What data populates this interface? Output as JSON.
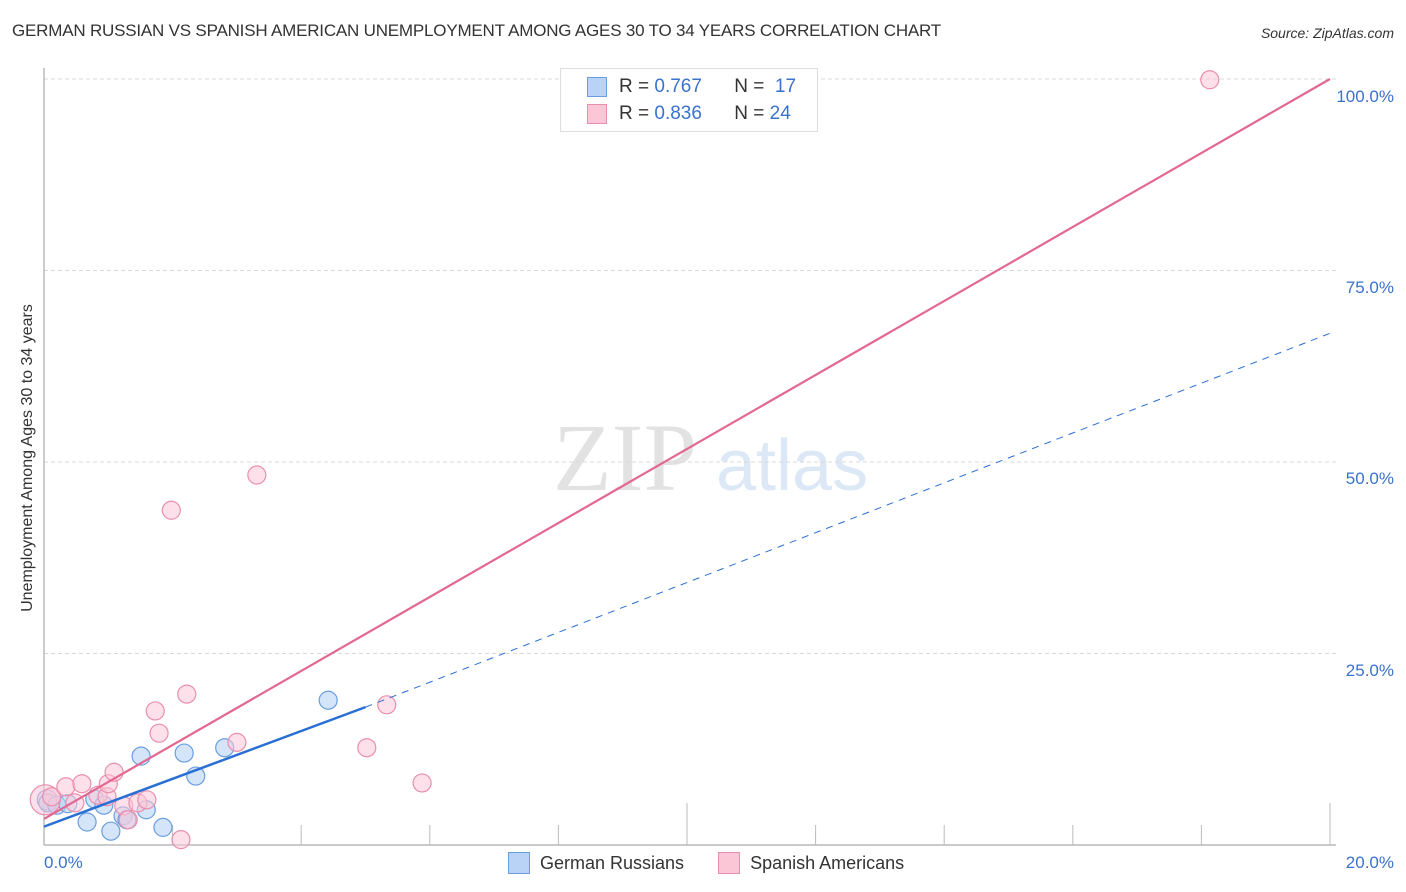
{
  "header": {
    "title": "GERMAN RUSSIAN VS SPANISH AMERICAN UNEMPLOYMENT AMONG AGES 30 TO 34 YEARS CORRELATION CHART",
    "source": "Source: ZipAtlas.com"
  },
  "legend_top": {
    "rows": [
      {
        "r_label": "R =",
        "r_value": "0.767",
        "n_label": "N =",
        "n_value": "17"
      },
      {
        "r_label": "R =",
        "r_value": "0.836",
        "n_label": "N =",
        "n_value": "24"
      }
    ]
  },
  "legend_bottom": {
    "items": [
      {
        "label": "German Russians",
        "color": "#b8d3f5"
      },
      {
        "label": "Spanish Americans",
        "color": "#fbc7d7"
      }
    ]
  },
  "axes": {
    "ylabel": "Unemployment Among Ages 30 to 34 years",
    "x_min_label": "0.0%",
    "x_max_label": "20.0%",
    "y_ticks": [
      "100.0%",
      "75.0%",
      "50.0%",
      "25.0%"
    ]
  },
  "watermark": {
    "zip": "ZIP",
    "atlas": "atlas"
  },
  "colors": {
    "blue_line": "#2a6fd4",
    "pink_line": "#e26791",
    "blue_fill": "#b8d3f5",
    "pink_fill": "#fbc7d7",
    "tick_label": "#3a72cc"
  },
  "chart_data": {
    "type": "scatter",
    "title": "GERMAN RUSSIAN VS SPANISH AMERICAN UNEMPLOYMENT AMONG AGES 30 TO 34 YEARS CORRELATION CHART",
    "xlabel": "",
    "ylabel": "Unemployment Among Ages 30 to 34 years",
    "xlim": [
      0,
      20
    ],
    "ylim": [
      0,
      100
    ],
    "x_ticks": [
      "0.0%",
      "20.0%"
    ],
    "y_ticks": [
      "25.0%",
      "50.0%",
      "75.0%",
      "100.0%"
    ],
    "grid": "horizontal dashed",
    "legend_position": "bottom",
    "series": [
      {
        "name": "German Russians",
        "R": 0.767,
        "N": 17,
        "color": "#6a9ee0",
        "points": [
          [
            0.05,
            5.9
          ],
          [
            0.06,
            5.5
          ],
          [
            0.2,
            5.2
          ],
          [
            0.37,
            5.4
          ],
          [
            0.67,
            3.0
          ],
          [
            0.79,
            6.0
          ],
          [
            0.93,
            5.2
          ],
          [
            1.04,
            1.8
          ],
          [
            1.23,
            3.8
          ],
          [
            1.29,
            3.3
          ],
          [
            1.51,
            11.6
          ],
          [
            1.59,
            4.6
          ],
          [
            1.85,
            2.3
          ],
          [
            2.18,
            12.0
          ],
          [
            2.36,
            9.0
          ],
          [
            2.81,
            12.7
          ],
          [
            4.42,
            18.9
          ]
        ],
        "trend": {
          "x0": 0,
          "y0": 2.4,
          "x1": 5.0,
          "y1": 18.0,
          "dashed_extension_to": [
            20,
            66.8
          ]
        }
      },
      {
        "name": "Spanish Americans",
        "R": 0.836,
        "N": 24,
        "color": "#e98fad",
        "points": [
          [
            0.02,
            5.9
          ],
          [
            0.12,
            6.3
          ],
          [
            0.34,
            7.6
          ],
          [
            0.48,
            5.5
          ],
          [
            0.59,
            8.0
          ],
          [
            0.84,
            6.5
          ],
          [
            0.98,
            6.3
          ],
          [
            1.0,
            8.0
          ],
          [
            1.09,
            9.5
          ],
          [
            1.24,
            5.1
          ],
          [
            1.31,
            3.3
          ],
          [
            1.46,
            5.5
          ],
          [
            1.6,
            5.9
          ],
          [
            1.73,
            17.5
          ],
          [
            1.79,
            14.6
          ],
          [
            1.98,
            43.7
          ],
          [
            2.13,
            0.7
          ],
          [
            2.22,
            19.7
          ],
          [
            3.0,
            13.4
          ],
          [
            3.31,
            48.3
          ],
          [
            5.02,
            12.7
          ],
          [
            5.33,
            18.3
          ],
          [
            5.88,
            8.1
          ],
          [
            18.13,
            99.9
          ]
        ],
        "trend": {
          "x0": 0,
          "y0": 3.4,
          "x1": 20,
          "y1": 100.0
        }
      }
    ]
  }
}
